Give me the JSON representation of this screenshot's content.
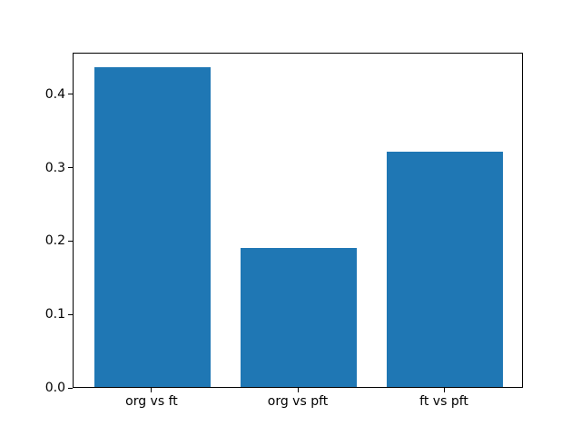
{
  "figure": {
    "background": "#ffffff"
  },
  "chart_data": {
    "type": "bar",
    "categories": [
      "org vs ft",
      "org vs pft",
      "ft vs pft"
    ],
    "values": [
      0.436,
      0.19,
      0.32
    ],
    "title": "",
    "xlabel": "",
    "ylabel": "",
    "ylim": [
      0,
      0.457
    ],
    "yticks": [
      0.0,
      0.1,
      0.2,
      0.3,
      0.4
    ],
    "ytick_labels": [
      "0.0",
      "0.1",
      "0.2",
      "0.3",
      "0.4"
    ],
    "bar_color": "#1f77b4",
    "axis_color": "#000000",
    "text_color": "#000000",
    "grid": false,
    "legend": null
  }
}
